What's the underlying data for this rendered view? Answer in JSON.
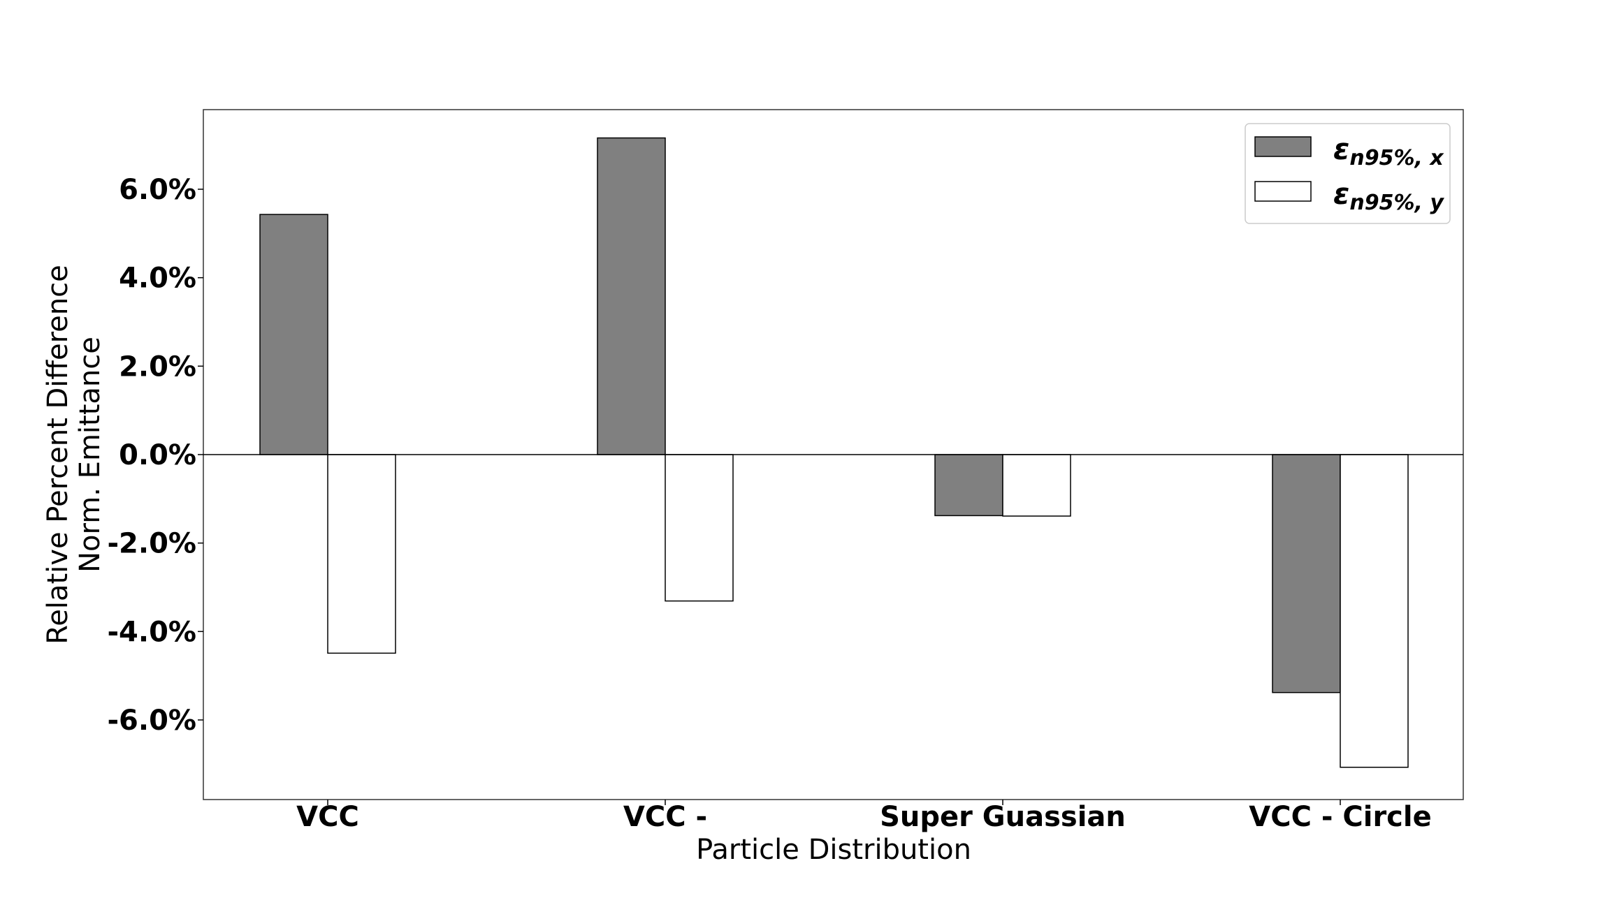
{
  "chart_data": {
    "type": "bar",
    "title": "",
    "xlabel": "Particle Distribution",
    "ylabel_lines": [
      "Relative Percent Difference",
      "Norm. Emittance"
    ],
    "categories": [
      "VCC",
      "VCC -",
      "Super Guassian",
      "VCC - Circle"
    ],
    "series": [
      {
        "name_main": "ε",
        "name_sub": "n95%, x",
        "color": "#808080",
        "values": [
          5.43,
          7.16,
          -1.38,
          -5.38
        ]
      },
      {
        "name_main": "ε",
        "name_sub": "n95%, y",
        "color": "#ffffff",
        "values": [
          -4.49,
          -3.31,
          -1.39,
          -7.07
        ]
      }
    ],
    "ylim": [
      -7.8,
      7.8
    ],
    "yticks": [
      -6,
      -4,
      -2,
      0,
      2,
      4,
      6
    ],
    "ytick_labels": [
      "-6.0%",
      "-4.0%",
      "-2.0%",
      "0.0%",
      "2.0%",
      "4.0%",
      "6.0%"
    ],
    "grid": false,
    "legend_position": "top-right",
    "bar_edge_color": "#000000",
    "zero_line": true
  }
}
